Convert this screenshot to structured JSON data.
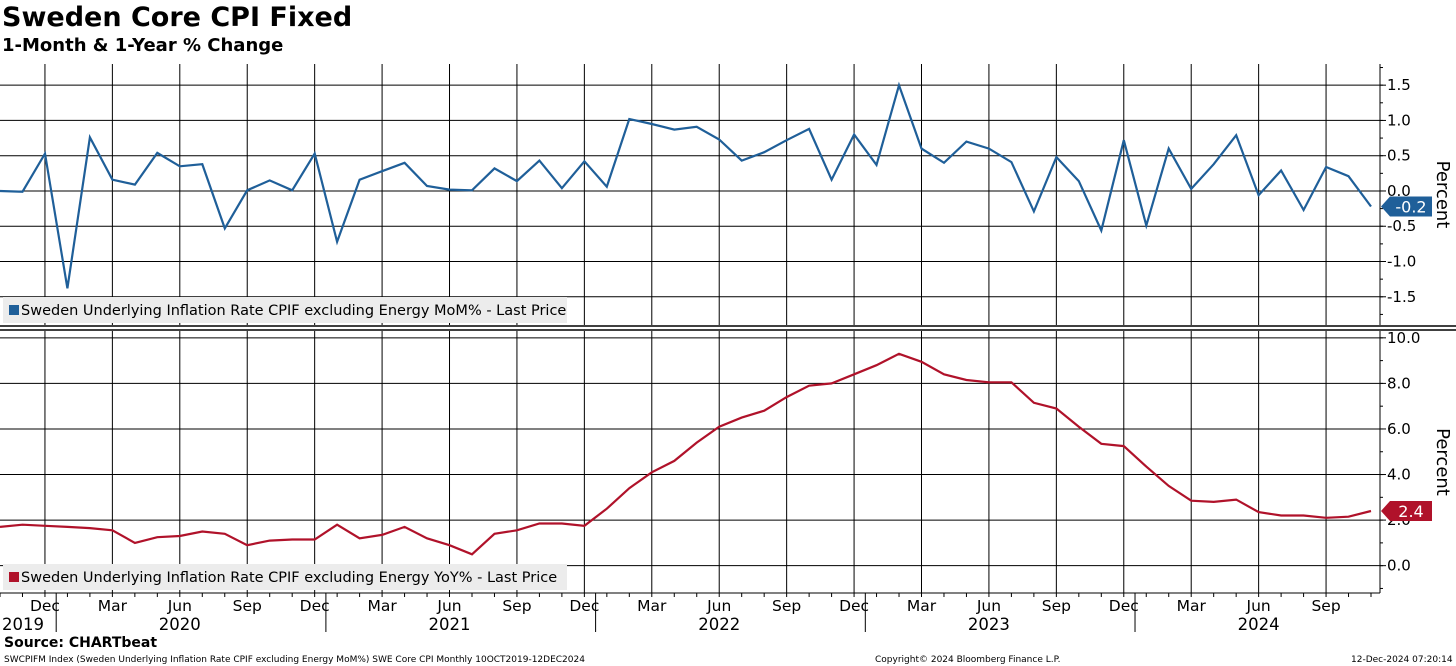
{
  "header": {
    "title": "Sweden Core CPI Fixed",
    "subtitle": "1-Month & 1-Year % Change"
  },
  "footer": {
    "source": "Source: CHARTbeat",
    "ticker": "SWCPIFM Index (Sweden Underlying Inflation Rate CPIF excluding Energy MoM%) SWE Core CPI  Monthly 10OCT2019-12DEC2024",
    "copyright": "Copyright© 2024 Bloomberg Finance L.P.",
    "timestamp": "12-Dec-2024 07:20:14"
  },
  "colors": {
    "mom": "#1f5f99",
    "yoy": "#b0122a",
    "grid": "#000000"
  },
  "chart_data": {
    "type": "line",
    "x": [
      "2019-10",
      "2019-11",
      "2019-12",
      "2020-01",
      "2020-02",
      "2020-03",
      "2020-04",
      "2020-05",
      "2020-06",
      "2020-07",
      "2020-08",
      "2020-09",
      "2020-10",
      "2020-11",
      "2020-12",
      "2021-01",
      "2021-02",
      "2021-03",
      "2021-04",
      "2021-05",
      "2021-06",
      "2021-07",
      "2021-08",
      "2021-09",
      "2021-10",
      "2021-11",
      "2021-12",
      "2022-01",
      "2022-02",
      "2022-03",
      "2022-04",
      "2022-05",
      "2022-06",
      "2022-07",
      "2022-08",
      "2022-09",
      "2022-10",
      "2022-11",
      "2022-12",
      "2023-01",
      "2023-02",
      "2023-03",
      "2023-04",
      "2023-05",
      "2023-06",
      "2023-07",
      "2023-08",
      "2023-09",
      "2023-10",
      "2023-11",
      "2023-12",
      "2024-01",
      "2024-02",
      "2024-03",
      "2024-04",
      "2024-05",
      "2024-06",
      "2024-07",
      "2024-08",
      "2024-09",
      "2024-10",
      "2024-11"
    ],
    "x_tick_labels": [
      {
        "label": "Dec",
        "month": "2019-12"
      },
      {
        "label": "Mar",
        "month": "2020-03"
      },
      {
        "label": "Jun",
        "month": "2020-06"
      },
      {
        "label": "Sep",
        "month": "2020-09"
      },
      {
        "label": "Dec",
        "month": "2020-12"
      },
      {
        "label": "Mar",
        "month": "2021-03"
      },
      {
        "label": "Jun",
        "month": "2021-06"
      },
      {
        "label": "Sep",
        "month": "2021-09"
      },
      {
        "label": "Dec",
        "month": "2021-12"
      },
      {
        "label": "Mar",
        "month": "2022-03"
      },
      {
        "label": "Jun",
        "month": "2022-06"
      },
      {
        "label": "Sep",
        "month": "2022-09"
      },
      {
        "label": "Dec",
        "month": "2022-12"
      },
      {
        "label": "Mar",
        "month": "2023-03"
      },
      {
        "label": "Jun",
        "month": "2023-06"
      },
      {
        "label": "Sep",
        "month": "2023-09"
      },
      {
        "label": "Dec",
        "month": "2023-12"
      },
      {
        "label": "Mar",
        "month": "2024-03"
      },
      {
        "label": "Jun",
        "month": "2024-06"
      },
      {
        "label": "Sep",
        "month": "2024-09"
      }
    ],
    "year_labels": [
      {
        "label": "2019",
        "month": "2019-10"
      },
      {
        "label": "2020",
        "month": "2020-06"
      },
      {
        "label": "2021",
        "month": "2021-06"
      },
      {
        "label": "2022",
        "month": "2022-06"
      },
      {
        "label": "2023",
        "month": "2023-06"
      },
      {
        "label": "2024",
        "month": "2024-06"
      }
    ],
    "panels": [
      {
        "id": "mom",
        "ylabel": "Percent",
        "ylim": [
          -1.9,
          1.8
        ],
        "yticks": [
          1.5,
          1.0,
          0.5,
          0.0,
          -0.5,
          -1.0,
          -1.5
        ],
        "ytick_labels": [
          "1.5",
          "1.0",
          "0.5",
          "0.0",
          "-0.5",
          "-1.0",
          "-1.5"
        ],
        "series": [
          {
            "name": "Sweden Underlying Inflation Rate CPIF excluding Energy MoM% - Last Price",
            "color": "#1f5f99",
            "last_label": "-0.2",
            "values": [
              0.0,
              -0.01,
              0.53,
              -1.38,
              0.76,
              0.16,
              0.09,
              0.54,
              0.35,
              0.38,
              -0.53,
              0.01,
              0.15,
              0.01,
              0.53,
              -0.72,
              0.16,
              0.28,
              0.4,
              0.07,
              0.02,
              0.01,
              0.32,
              0.14,
              0.43,
              0.04,
              0.42,
              0.06,
              1.02,
              0.95,
              0.87,
              0.91,
              0.73,
              0.43,
              0.55,
              0.72,
              0.88,
              0.16,
              0.8,
              0.37,
              1.5,
              0.6,
              0.4,
              0.7,
              0.6,
              0.41,
              -0.29,
              0.48,
              0.14,
              -0.56,
              0.72,
              -0.49,
              0.6,
              0.03,
              0.38,
              0.79,
              -0.06,
              0.29,
              -0.27,
              0.34,
              0.21,
              -0.22
            ]
          }
        ]
      },
      {
        "id": "yoy",
        "ylabel": "Percent",
        "ylim": [
          -1.2,
          10.3
        ],
        "yticks": [
          10.0,
          8.0,
          6.0,
          4.0,
          2.0,
          0.0
        ],
        "ytick_labels": [
          "10.0",
          "8.0",
          "6.0",
          "4.0",
          "2.0",
          "0.0"
        ],
        "series": [
          {
            "name": "Sweden Underlying Inflation Rate CPIF excluding Energy YoY% - Last Price",
            "color": "#b0122a",
            "last_label": "2.4",
            "values": [
              1.7,
              1.8,
              1.75,
              1.7,
              1.65,
              1.55,
              1.0,
              1.25,
              1.3,
              1.5,
              1.4,
              0.9,
              1.1,
              1.15,
              1.15,
              1.8,
              1.2,
              1.35,
              1.7,
              1.2,
              0.9,
              0.5,
              1.4,
              1.55,
              1.85,
              1.85,
              1.75,
              2.5,
              3.4,
              4.1,
              4.6,
              5.4,
              6.1,
              6.5,
              6.8,
              7.4,
              7.9,
              8.0,
              8.4,
              8.8,
              9.3,
              8.95,
              8.4,
              8.15,
              8.05,
              8.05,
              7.15,
              6.9,
              6.1,
              5.35,
              5.25,
              4.35,
              3.5,
              2.85,
              2.8,
              2.9,
              2.35,
              2.2,
              2.2,
              2.1,
              2.15,
              2.4
            ]
          }
        ]
      }
    ]
  }
}
